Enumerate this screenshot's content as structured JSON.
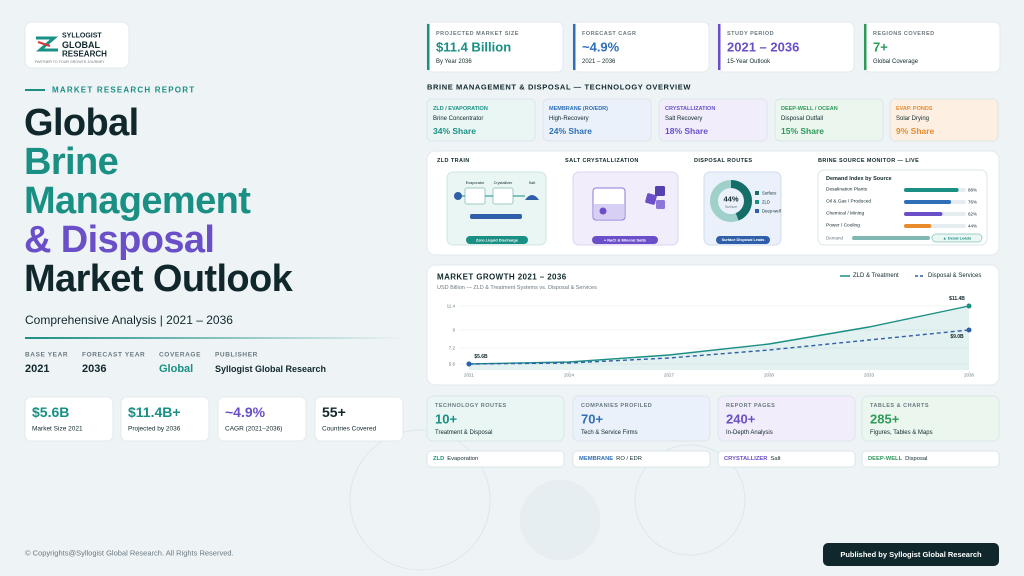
{
  "logo": {
    "line1": "SYLLOGIST",
    "line2": "GLOBAL",
    "line3": "RESEARCH",
    "tagline": "PARTNER TO YOUR GROWTH JOURNEY"
  },
  "hero": {
    "eyebrow": "MARKET RESEARCH REPORT",
    "title_lines": [
      "Global",
      "Brine",
      "Management",
      "& Disposal",
      "Market Outlook"
    ],
    "subtitle": "Comprehensive Analysis | 2021 – 2036"
  },
  "meta": [
    {
      "label": "BASE YEAR",
      "value": "2021"
    },
    {
      "label": "FORECAST YEAR",
      "value": "2036"
    },
    {
      "label": "COVERAGE",
      "value": "Global"
    },
    {
      "label": "PUBLISHER",
      "value": "Syllogist Global Research"
    }
  ],
  "stats": [
    {
      "value": "$5.6B",
      "label": "Market Size 2021"
    },
    {
      "value": "$11.4B+",
      "label": "Projected by 2036"
    },
    {
      "value": "~4.9%",
      "label": "CAGR (2021–2036)"
    },
    {
      "value": "55+",
      "label": "Countries Covered"
    }
  ],
  "kpis": [
    {
      "label": "PROJECTED MARKET SIZE",
      "value": "$11.4 Billion",
      "note": "By Year 2036"
    },
    {
      "label": "FORECAST CAGR",
      "value": "~4.9%",
      "note": "2021 – 2036"
    },
    {
      "label": "STUDY PERIOD",
      "value": "2021 – 2036",
      "note": "15-Year Outlook"
    },
    {
      "label": "REGIONS COVERED",
      "value": "7+",
      "note": "Global Coverage"
    }
  ],
  "tech_overview": {
    "title": "BRINE MANAGEMENT & DISPOSAL — TECHNOLOGY OVERVIEW",
    "items": [
      {
        "name": "ZLD / EVAPORATION",
        "desc": "Brine Concentrator",
        "share": "34% Share"
      },
      {
        "name": "MEMBRANE (RO/EDR)",
        "desc": "High-Recovery",
        "share": "24% Share"
      },
      {
        "name": "CRYSTALLIZATION",
        "desc": "Salt Recovery",
        "share": "18% Share"
      },
      {
        "name": "DEEP-WELL / OCEAN",
        "desc": "Disposal Outfall",
        "share": "15% Share"
      },
      {
        "name": "EVAP. PONDS",
        "desc": "Solar Drying",
        "share": "9% Share"
      }
    ]
  },
  "process": {
    "zld_train": {
      "title": "ZLD TRAIN",
      "labels": [
        "Evaporator",
        "Crystallizer",
        "Salt"
      ],
      "caption": "Zero Liquid Discharge"
    },
    "salt": {
      "title": "SALT CRYSTALLIZATION",
      "caption": "+ NaCl & Mineral Salts"
    },
    "disposal": {
      "title": "DISPOSAL ROUTES",
      "center_value": 44,
      "center_label": "44%",
      "center_sub": "Surface",
      "legend": [
        "Surface",
        "ZLD",
        "Deep-well"
      ],
      "caption": "Surface Disposal Leads"
    },
    "monitor": {
      "title": "BRINE SOURCE MONITOR — LIVE",
      "heading": "Demand Index by Source",
      "rows": [
        {
          "label": "Desalination Plants",
          "value": 88,
          "value_label": "88%"
        },
        {
          "label": "Oil & Gas / Produced",
          "value": 76,
          "value_label": "76%"
        },
        {
          "label": "Chemical / Mining",
          "value": 62,
          "value_label": "62%"
        },
        {
          "label": "Power / Cooling",
          "value": 44,
          "value_label": "44%"
        }
      ],
      "footer_label": "Demand",
      "badge": "▲ Desal Leads"
    }
  },
  "chart_data": {
    "type": "line",
    "title": "MARKET GROWTH 2021 – 2036",
    "subtitle": "USD Billion — ZLD & Treatment Systems vs. Disposal & Services",
    "x": [
      2021,
      2024,
      2027,
      2030,
      2033,
      2036
    ],
    "xlim": [
      2021,
      2036
    ],
    "xticks": [
      2021,
      2024,
      2027,
      2030,
      2033,
      2036
    ],
    "ylim": [
      5.0,
      12.0
    ],
    "yticks": [
      5.6,
      7.2,
      9.0,
      11.4
    ],
    "grid": true,
    "legend": "top-right",
    "series": [
      {
        "name": "ZLD & Treatment",
        "color": "#1a8f84",
        "line_style": "solid",
        "area": true,
        "values": [
          5.6,
          5.8,
          6.5,
          7.6,
          9.3,
          11.4
        ],
        "value_labels": [
          "$5.6B",
          null,
          null,
          null,
          null,
          "$11.4B"
        ]
      },
      {
        "name": "Disposal & Services",
        "color": "#2f5fa8",
        "line_style": "dashed",
        "area": false,
        "values": [
          5.6,
          5.7,
          6.2,
          7.0,
          8.0,
          9.0
        ],
        "value_labels": [
          null,
          null,
          null,
          null,
          null,
          "$9.0B"
        ]
      }
    ]
  },
  "facts": [
    {
      "label": "TECHNOLOGY ROUTES",
      "value": "10+",
      "note": "Treatment & Disposal"
    },
    {
      "label": "COMPANIES PROFILED",
      "value": "70+",
      "note": "Tech & Service Firms"
    },
    {
      "label": "REPORT PAGES",
      "value": "240+",
      "note": "In-Depth Analysis"
    },
    {
      "label": "TABLES & CHARTS",
      "value": "285+",
      "note": "Figures, Tables & Maps"
    }
  ],
  "tags": [
    {
      "key": "ZLD",
      "text": "Evaporation"
    },
    {
      "key": "MEMBRANE",
      "text": "RO / EDR"
    },
    {
      "key": "CRYSTALLIZER",
      "text": "Salt"
    },
    {
      "key": "DEEP-WELL",
      "text": "Disposal"
    }
  ],
  "footer": {
    "copyright": "© Copyrights@Syllogist Global Research. All Rights Reserved.",
    "publisher": "Published by Syllogist Global Research"
  }
}
